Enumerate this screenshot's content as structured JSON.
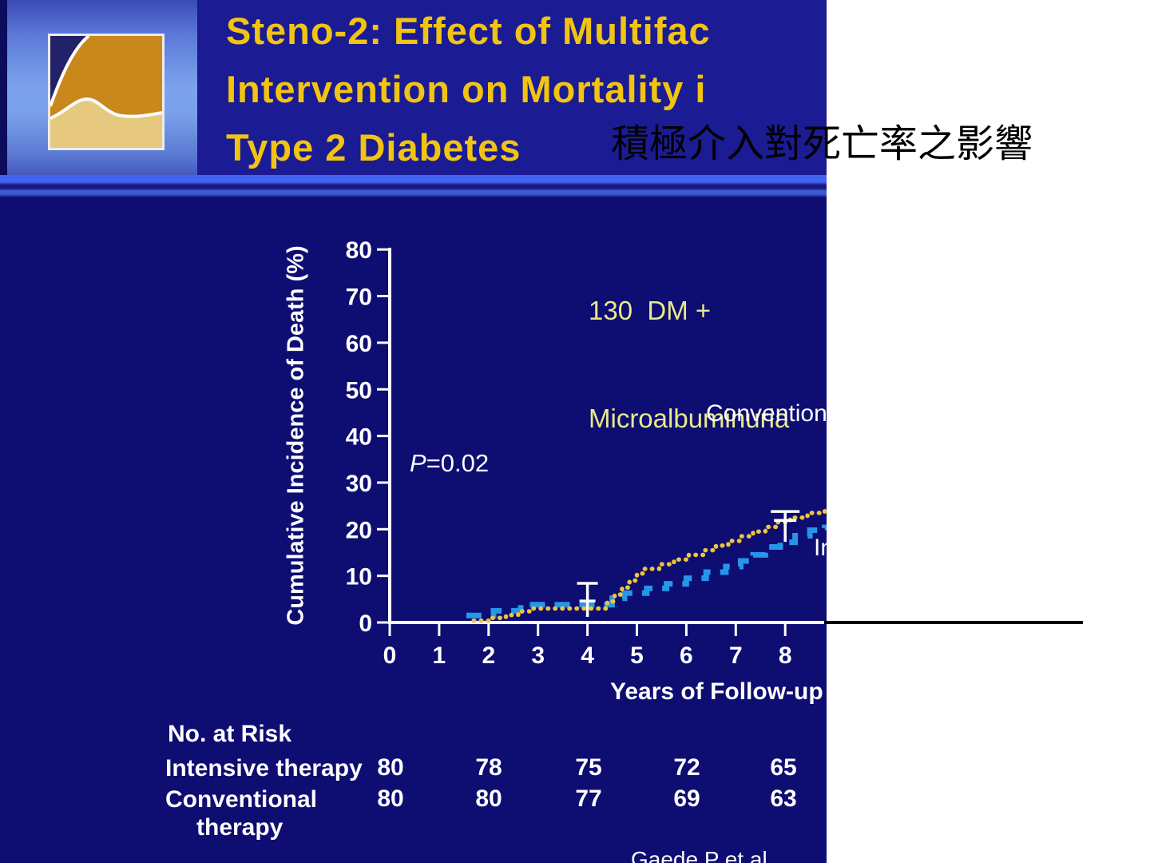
{
  "colors": {
    "page_bg": "#ffffff",
    "slide_bg": "#0d0d72",
    "title_box_bg": "#1b1b94",
    "title_text": "#f2c412",
    "subtitle_text": "#e9e98c",
    "axis_text": "#ffffff",
    "conventional_curve": "#ecc440",
    "intensive_curve": "#2696e8",
    "overlay_line": "#000000"
  },
  "header": {
    "logo_icon": "steno-logo-icon",
    "title_lines": [
      "Steno-2: Effect of Multifac",
      "Intervention on Mortality i",
      "Type 2 Diabetes"
    ],
    "title_cjk": "積極介入對死亡率之影響"
  },
  "annotations": {
    "cohort_line1": "130  DM +",
    "cohort_line2": "Microalbuminuria",
    "p_value_italic": "P",
    "p_value_rest": "=0.02",
    "conventional_label": "Conventional",
    "intensive_label": "Intensive",
    "citation": "Gaede P et al."
  },
  "risk_table": {
    "header": "No. at Risk",
    "rows": [
      {
        "label": "Intensive therapy",
        "label_line2": "",
        "values": [
          "80",
          "78",
          "75",
          "72",
          "65"
        ]
      },
      {
        "label": "Conventional",
        "label_line2": "therapy",
        "values": [
          "80",
          "80",
          "77",
          "69",
          "63"
        ]
      }
    ]
  },
  "chart_data": {
    "type": "line",
    "title": "",
    "xlabel": "Years of Follow-up",
    "ylabel": "Cumulative Incidence of Death (%)",
    "xlim": [
      0,
      8.9
    ],
    "ylim": [
      0,
      80
    ],
    "xticks": [
      0,
      1,
      2,
      3,
      4,
      5,
      6,
      7,
      8
    ],
    "yticks": [
      0,
      10,
      20,
      30,
      40,
      50,
      60,
      70,
      80
    ],
    "grid": false,
    "annotation": "P=0.02",
    "legend_position": "on-curve",
    "series": [
      {
        "name": "Conventional therapy",
        "style": "dotted",
        "color": "#ecc440",
        "step_points": [
          [
            1.7,
            0.4
          ],
          [
            2.0,
            1.0
          ],
          [
            2.35,
            1.6
          ],
          [
            2.6,
            2.4
          ],
          [
            2.9,
            3.0
          ],
          [
            4.25,
            3.0
          ],
          [
            4.4,
            4.5
          ],
          [
            4.55,
            6.0
          ],
          [
            4.7,
            7.5
          ],
          [
            4.85,
            9.0
          ],
          [
            5.0,
            10.5
          ],
          [
            5.15,
            11.5
          ],
          [
            5.45,
            12.5
          ],
          [
            5.75,
            13.5
          ],
          [
            6.05,
            14.5
          ],
          [
            6.35,
            15.5
          ],
          [
            6.6,
            16.5
          ],
          [
            6.85,
            17.5
          ],
          [
            7.1,
            18.5
          ],
          [
            7.35,
            19.5
          ],
          [
            7.6,
            20.5
          ],
          [
            7.85,
            21.5
          ],
          [
            8.1,
            22.5
          ],
          [
            8.45,
            23.5
          ],
          [
            8.8,
            24.5
          ]
        ]
      },
      {
        "name": "Intensive therapy",
        "style": "dashed",
        "color": "#2696e8",
        "step_points": [
          [
            1.55,
            1.5
          ],
          [
            2.1,
            2.5
          ],
          [
            2.65,
            3.8
          ],
          [
            4.35,
            3.8
          ],
          [
            4.5,
            5.2
          ],
          [
            4.75,
            6.3
          ],
          [
            5.2,
            7.3
          ],
          [
            5.6,
            8.3
          ],
          [
            6.0,
            9.5
          ],
          [
            6.4,
            10.8
          ],
          [
            6.8,
            12.0
          ],
          [
            7.1,
            13.2
          ],
          [
            7.35,
            14.5
          ],
          [
            7.6,
            16.2
          ],
          [
            7.9,
            17.2
          ],
          [
            8.2,
            18.6
          ],
          [
            8.5,
            19.8
          ],
          [
            8.8,
            20.4
          ]
        ]
      }
    ],
    "error_bars": [
      {
        "x": 4.0,
        "low": 1.2,
        "high": 8.4,
        "caps": [
          8.4,
          4.6
        ],
        "cap_widths": [
          26,
          20
        ]
      },
      {
        "x": 8.0,
        "low": 17.3,
        "high": 23.8,
        "caps": [
          23.8,
          21.9
        ],
        "cap_widths": [
          36,
          28
        ]
      }
    ],
    "at_risk_years": [
      0,
      2,
      4,
      6,
      8
    ]
  }
}
